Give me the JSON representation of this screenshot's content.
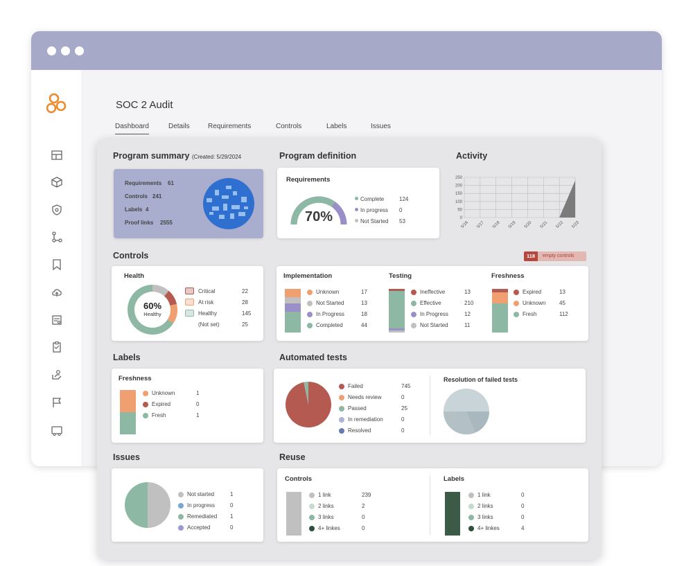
{
  "page": {
    "title": "SOC 2 Audit"
  },
  "tabs": [
    "Dashboard",
    "Details",
    "Requirements",
    "Controls",
    "Labels",
    "Issues"
  ],
  "program_summary": {
    "title": "Program summary",
    "created": "(Created: 5/29/2024",
    "rows": [
      {
        "label": "Requirements",
        "value": "61"
      },
      {
        "label": "Controls",
        "value": "241"
      },
      {
        "label": "Labels",
        "value": "4"
      },
      {
        "label": "Proof links",
        "value": "2555"
      }
    ]
  },
  "program_definition": {
    "title": "Program definition",
    "card_title": "Requirements",
    "percent": "70%",
    "legend": [
      {
        "label": "Complete",
        "value": "124",
        "color": "#8db8a3"
      },
      {
        "label": "In progress",
        "value": "0",
        "color": "#9b8fca"
      },
      {
        "label": "Not Started",
        "value": "53",
        "color": "#c0c0c0"
      }
    ]
  },
  "activity": {
    "title": "Activity"
  },
  "controls": {
    "title": "Controls",
    "badge_count": "118",
    "badge_label": "empty controls",
    "health": {
      "title": "Health",
      "percent": "60%",
      "sub": "Healthy",
      "legend": [
        {
          "label": "Critical",
          "value": "22",
          "color": "#b55a50"
        },
        {
          "label": "At risk",
          "value": "28",
          "color": "#f0a070"
        },
        {
          "label": "Healthy",
          "value": "145",
          "color": "#8db8a3"
        },
        {
          "label": "(Not set)",
          "value": "25",
          "color": "#c0c0c0"
        }
      ]
    },
    "implementation": {
      "title": "Implementation",
      "legend": [
        {
          "label": "Unknown",
          "value": "17",
          "color": "#f0a070"
        },
        {
          "label": "Not Started",
          "value": "13",
          "color": "#c0c0c0"
        },
        {
          "label": "In Progress",
          "value": "18",
          "color": "#9b8fca"
        },
        {
          "label": "Completed",
          "value": "44",
          "color": "#8db8a3"
        }
      ]
    },
    "testing": {
      "title": "Testing",
      "legend": [
        {
          "label": "Ineffective",
          "value": "13",
          "color": "#b55a50"
        },
        {
          "label": "Effective",
          "value": "210",
          "color": "#8db8a3"
        },
        {
          "label": "In Progress",
          "value": "12",
          "color": "#9b8fca"
        },
        {
          "label": "Not Started",
          "value": "11",
          "color": "#c0c0c0"
        }
      ]
    },
    "freshness": {
      "title": "Freshness",
      "legend": [
        {
          "label": "Expired",
          "value": "13",
          "color": "#b55a50"
        },
        {
          "label": "Unknown",
          "value": "45",
          "color": "#f0a070"
        },
        {
          "label": "Fresh",
          "value": "112",
          "color": "#8db8a3"
        }
      ]
    }
  },
  "labels": {
    "title": "Labels",
    "card_title": "Freshness",
    "legend": [
      {
        "label": "Unknown",
        "value": "1",
        "color": "#f0a070"
      },
      {
        "label": "Expired",
        "value": "0",
        "color": "#b55a50"
      },
      {
        "label": "Fresh",
        "value": "1",
        "color": "#8db8a3"
      }
    ]
  },
  "automated_tests": {
    "title": "Automated tests",
    "legend": [
      {
        "label": "Failed",
        "value": "745",
        "color": "#b55a50"
      },
      {
        "label": "Needs review",
        "value": "0",
        "color": "#f0a070"
      },
      {
        "label": "Passed",
        "value": "25",
        "color": "#8db8a3"
      },
      {
        "label": "In remediation",
        "value": "0",
        "color": "#a8b4d8"
      },
      {
        "label": "Resolved",
        "value": "0",
        "color": "#6878b0"
      }
    ],
    "resolution_title": "Resolution of failed tests"
  },
  "issues": {
    "title": "Issues",
    "legend": [
      {
        "label": "Not started",
        "value": "1",
        "color": "#c0c0c0"
      },
      {
        "label": "In progress",
        "value": "0",
        "color": "#7aa7d4"
      },
      {
        "label": "Remediated",
        "value": "1",
        "color": "#8db8a3"
      },
      {
        "label": "Accepted",
        "value": "0",
        "color": "#9b9bd4"
      }
    ]
  },
  "reuse": {
    "title": "Reuse",
    "controls": {
      "title": "Controls",
      "legend": [
        {
          "label": "1 link",
          "value": "239",
          "color": "#c0c0c0"
        },
        {
          "label": "2 links",
          "value": "2",
          "color": "#c4dccd"
        },
        {
          "label": "3 links",
          "value": "0",
          "color": "#8db8a3"
        },
        {
          "label": "4+ linkes",
          "value": "0",
          "color": "#2f4f3c"
        }
      ]
    },
    "labels": {
      "title": "Labels",
      "legend": [
        {
          "label": "1 link",
          "value": "0",
          "color": "#c0c0c0"
        },
        {
          "label": "2 links",
          "value": "0",
          "color": "#c4dccd"
        },
        {
          "label": "3 links",
          "value": "0",
          "color": "#8db8a3"
        },
        {
          "label": "4+ linkes",
          "value": "4",
          "color": "#2f4f3c"
        }
      ]
    }
  },
  "chart_data": [
    {
      "type": "line",
      "title": "Activity",
      "x": [
        "5/16",
        "5/17",
        "5/18",
        "5/19",
        "5/20",
        "5/21",
        "5/22",
        "5/23"
      ],
      "series": [
        {
          "values": [
            0,
            0,
            0,
            0,
            0,
            0,
            0,
            230
          ]
        }
      ],
      "ylim": [
        0,
        250
      ],
      "yticks": [
        "250",
        "200",
        "150",
        "100",
        "50",
        "0"
      ],
      "grid": true
    }
  ]
}
